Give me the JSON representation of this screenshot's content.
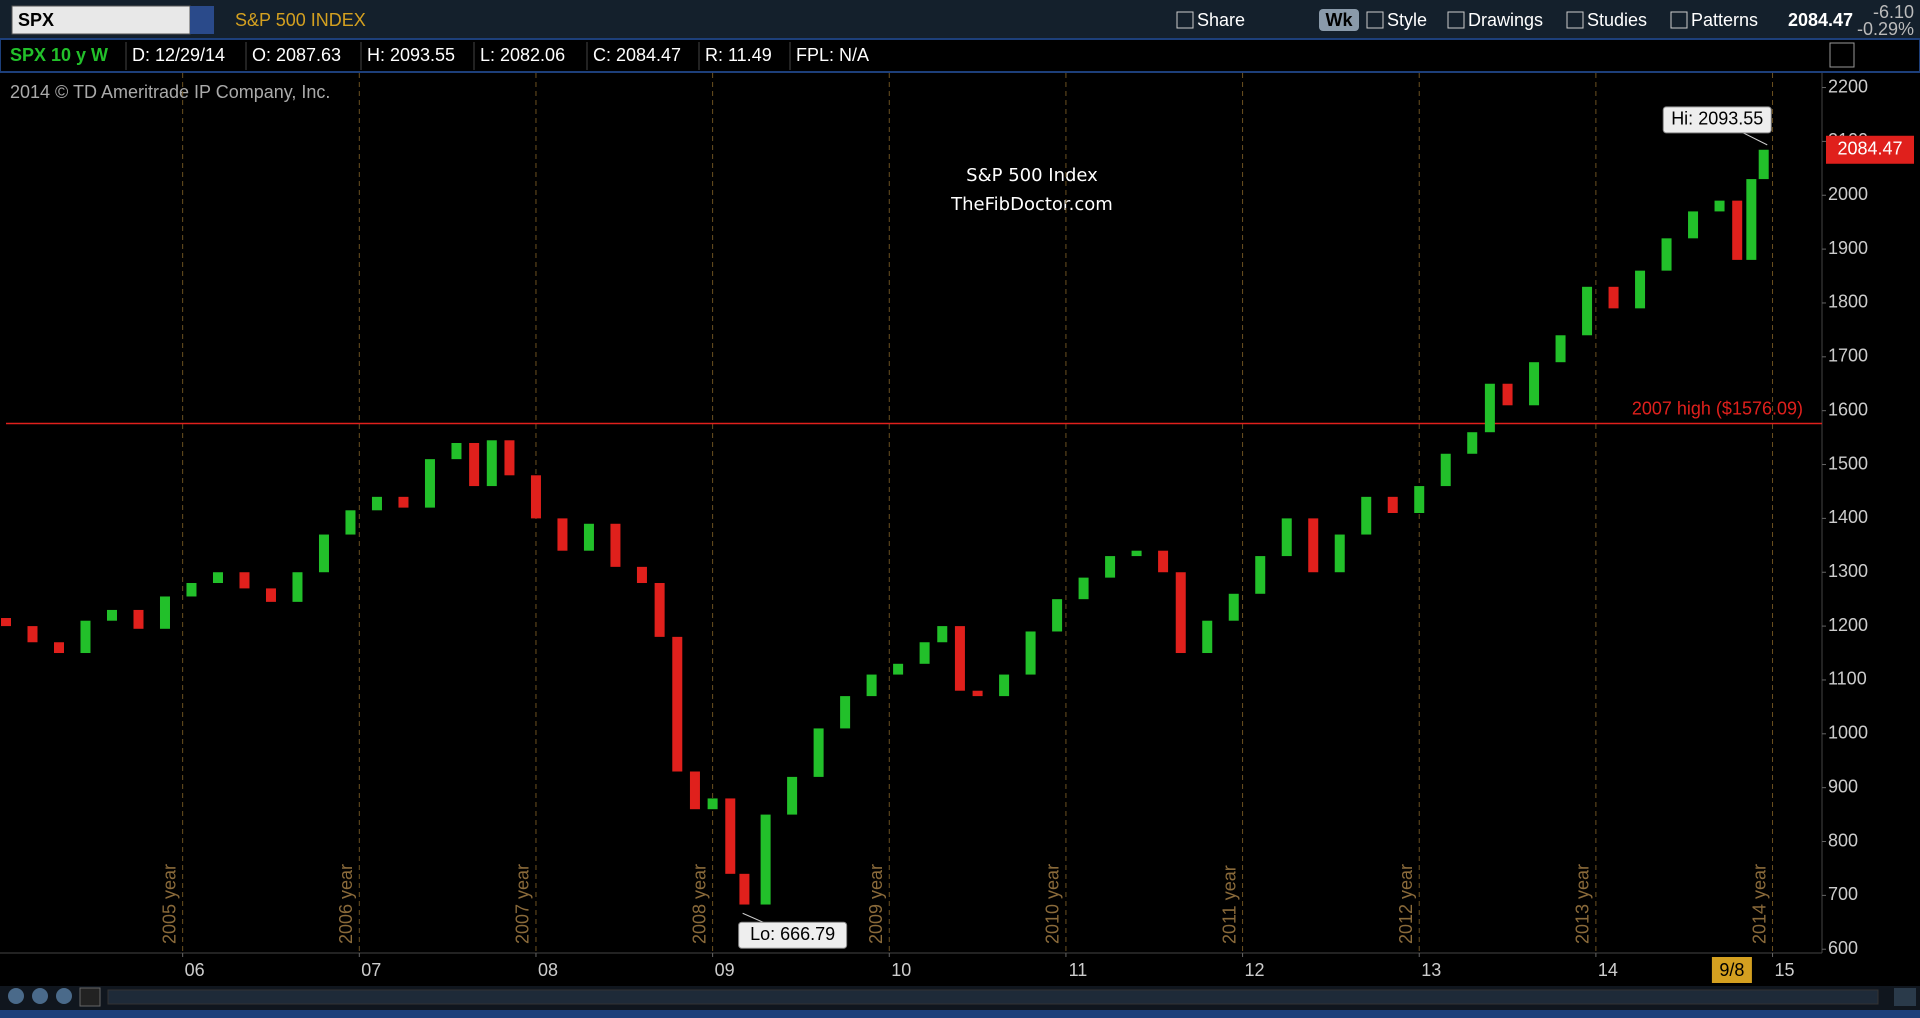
{
  "toolbar": {
    "symbol": "SPX",
    "description": "S&P 500 INDEX",
    "buttons": [
      "Share",
      "Wk",
      "Style",
      "Drawings",
      "Studies",
      "Patterns"
    ],
    "last": "2084.47",
    "change": "-6.10",
    "change_pct": "-0.29%"
  },
  "info_bar": {
    "study": "SPX 10 y W",
    "fields": [
      "D: 12/29/14",
      "O: 2087.63",
      "H: 2093.55",
      "L: 2082.06",
      "C: 2084.47",
      "R: 11.49",
      "FPL: N/A"
    ]
  },
  "chart_data": {
    "type": "candlestick",
    "title": "S&P 500 Index",
    "subtitle": "TheFibDoctor.com",
    "copyright": "2014 © TD Ameritrade IP Company, Inc.",
    "x": [
      2005.0,
      2005.15,
      2005.3,
      2005.45,
      2005.6,
      2005.75,
      2005.9,
      2006.05,
      2006.2,
      2006.35,
      2006.5,
      2006.65,
      2006.8,
      2006.95,
      2007.1,
      2007.25,
      2007.4,
      2007.55,
      2007.65,
      2007.75,
      2007.85,
      2008.0,
      2008.15,
      2008.3,
      2008.45,
      2008.6,
      2008.7,
      2008.8,
      2008.9,
      2009.0,
      2009.1,
      2009.18,
      2009.3,
      2009.45,
      2009.6,
      2009.75,
      2009.9,
      2010.05,
      2010.2,
      2010.3,
      2010.4,
      2010.5,
      2010.65,
      2010.8,
      2010.95,
      2011.1,
      2011.25,
      2011.4,
      2011.55,
      2011.65,
      2011.8,
      2011.95,
      2012.1,
      2012.25,
      2012.4,
      2012.55,
      2012.7,
      2012.85,
      2013.0,
      2013.15,
      2013.3,
      2013.4,
      2013.5,
      2013.65,
      2013.8,
      2013.95,
      2014.1,
      2014.25,
      2014.4,
      2014.55,
      2014.7,
      2014.8,
      2014.88,
      2014.95
    ],
    "open": [
      1215,
      1200,
      1170,
      1150,
      1210,
      1230,
      1195,
      1255,
      1280,
      1300,
      1270,
      1245,
      1300,
      1370,
      1415,
      1440,
      1420,
      1510,
      1540,
      1460,
      1545,
      1480,
      1400,
      1340,
      1390,
      1310,
      1280,
      1180,
      930,
      860,
      880,
      740,
      683,
      850,
      920,
      1010,
      1070,
      1110,
      1130,
      1170,
      1200,
      1080,
      1070,
      1110,
      1190,
      1250,
      1290,
      1330,
      1340,
      1300,
      1150,
      1210,
      1260,
      1330,
      1400,
      1300,
      1370,
      1440,
      1410,
      1460,
      1520,
      1560,
      1650,
      1610,
      1690,
      1740,
      1830,
      1790,
      1860,
      1920,
      1970,
      1990,
      1880,
      2030
    ],
    "close": [
      1200,
      1170,
      1150,
      1210,
      1230,
      1195,
      1255,
      1280,
      1300,
      1270,
      1245,
      1300,
      1370,
      1415,
      1440,
      1420,
      1510,
      1540,
      1460,
      1545,
      1480,
      1400,
      1340,
      1390,
      1310,
      1280,
      1180,
      930,
      860,
      880,
      740,
      683,
      850,
      920,
      1010,
      1070,
      1110,
      1130,
      1170,
      1200,
      1080,
      1070,
      1110,
      1190,
      1250,
      1290,
      1330,
      1340,
      1300,
      1150,
      1210,
      1260,
      1330,
      1400,
      1300,
      1370,
      1440,
      1410,
      1460,
      1520,
      1560,
      1650,
      1610,
      1690,
      1740,
      1830,
      1790,
      1860,
      1920,
      1970,
      1990,
      1880,
      2030,
      2084.47
    ],
    "up_color": "#22c02a",
    "down_color": "#e0201c",
    "xlim": [
      2005,
      2015.28
    ],
    "xticks": [
      {
        "value": 2006,
        "label": "06"
      },
      {
        "value": 2007,
        "label": "07"
      },
      {
        "value": 2008,
        "label": "08"
      },
      {
        "value": 2009,
        "label": "09"
      },
      {
        "value": 2010,
        "label": "10"
      },
      {
        "value": 2011,
        "label": "11"
      },
      {
        "value": 2012,
        "label": "12"
      },
      {
        "value": 2013,
        "label": "13"
      },
      {
        "value": 2014,
        "label": "14"
      },
      {
        "value": 2015,
        "label": "15"
      }
    ],
    "ylim": [
      593,
      2227
    ],
    "yticks": [
      600,
      700,
      800,
      900,
      1000,
      1100,
      1200,
      1300,
      1400,
      1500,
      1600,
      1700,
      1800,
      1900,
      2000,
      2100,
      2200
    ],
    "year_lines": [
      {
        "value": 2006,
        "label": "2005 year"
      },
      {
        "value": 2007,
        "label": "2006 year"
      },
      {
        "value": 2008,
        "label": "2007 year"
      },
      {
        "value": 2009,
        "label": "2008 year"
      },
      {
        "value": 2010,
        "label": "2009 year"
      },
      {
        "value": 2011,
        "label": "2010 year"
      },
      {
        "value": 2012,
        "label": "2011 year"
      },
      {
        "value": 2013,
        "label": "2012 year"
      },
      {
        "value": 2014,
        "label": "2013 year"
      },
      {
        "value": 2015,
        "label": "2014 year"
      }
    ],
    "hline": {
      "value": 1576.09,
      "label": "2007 high ($1576.09)",
      "color": "#e0201c"
    },
    "annotations": [
      {
        "x": 2014.97,
        "y": 2093.55,
        "label": "Hi: 2093.55"
      },
      {
        "x": 2009.17,
        "y": 666.79,
        "label": "Lo: 666.79"
      }
    ],
    "last_price": 2084.47,
    "cursor": {
      "value": 2014.77,
      "label": "9/8"
    }
  }
}
